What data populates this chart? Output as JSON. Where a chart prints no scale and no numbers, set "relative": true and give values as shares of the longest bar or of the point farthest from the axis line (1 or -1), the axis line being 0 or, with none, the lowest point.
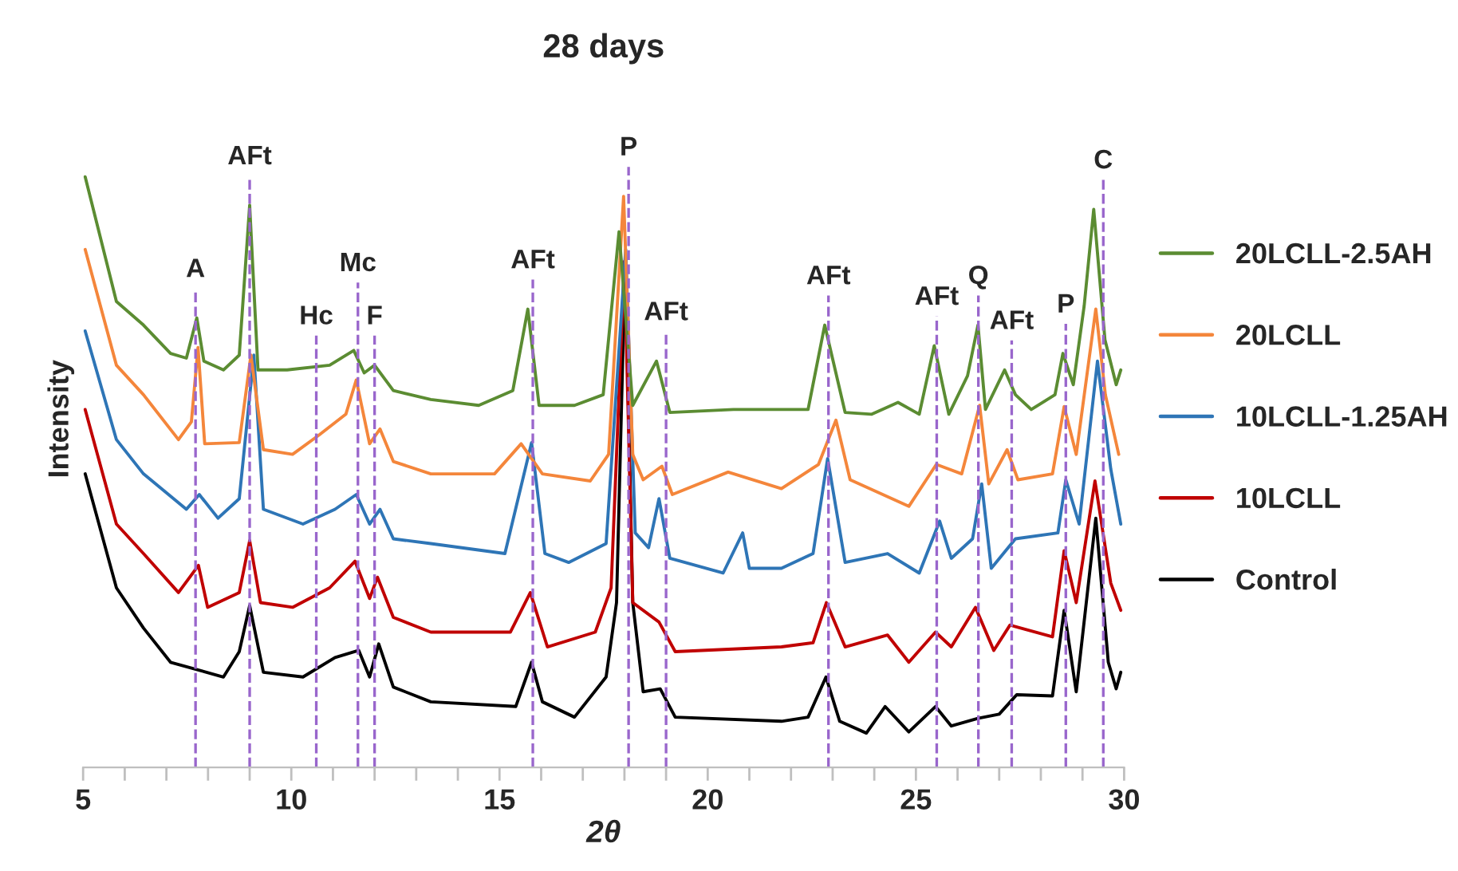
{
  "chart_data": {
    "type": "line",
    "title": "28 days",
    "xlabel": "2θ",
    "ylabel": "Intensity",
    "relative": true,
    "legend": "right",
    "xlim": [
      5,
      30
    ],
    "xticks": [
      5,
      {
        "value": 6,
        "label": null
      },
      {
        "value": 7,
        "label": null
      },
      {
        "value": 8,
        "label": null
      },
      {
        "value": 9,
        "label": null
      },
      10,
      {
        "value": 11,
        "label": null
      },
      {
        "value": 12,
        "label": null
      },
      {
        "value": 13,
        "label": null
      },
      {
        "value": 14,
        "label": null
      },
      15,
      {
        "value": 16,
        "label": null
      },
      {
        "value": 17,
        "label": null
      },
      {
        "value": 18,
        "label": null
      },
      {
        "value": 19,
        "label": null
      },
      20,
      {
        "value": 21,
        "label": null
      },
      {
        "value": 22,
        "label": null
      },
      {
        "value": 23,
        "label": null
      },
      {
        "value": 24,
        "label": null
      },
      25,
      {
        "value": 26,
        "label": null
      },
      {
        "value": 27,
        "label": null
      },
      {
        "value": 28,
        "label": null
      },
      {
        "value": 29,
        "label": null
      },
      30
    ],
    "series": [
      {
        "name": "Control",
        "color": "#000000",
        "x": [
          5.05,
          5.8,
          6.45,
          7.1,
          8.37,
          8.75,
          9.0,
          9.33,
          10.28,
          11.05,
          11.62,
          11.88,
          12.1,
          12.45,
          13.35,
          15.39,
          15.77,
          16.03,
          16.8,
          17.56,
          17.81,
          18.02,
          18.2,
          18.45,
          18.86,
          19.22,
          21.77,
          22.41,
          22.84,
          23.17,
          23.81,
          24.26,
          24.83,
          25.47,
          25.85,
          26.49,
          27.0,
          27.42,
          28.28,
          28.56,
          28.85,
          29.32,
          29.62,
          29.81,
          29.92
        ],
        "values": [
          0.497,
          0.304,
          0.236,
          0.178,
          0.153,
          0.196,
          0.274,
          0.161,
          0.153,
          0.186,
          0.198,
          0.153,
          0.209,
          0.136,
          0.111,
          0.103,
          0.178,
          0.111,
          0.085,
          0.153,
          0.279,
          0.862,
          0.279,
          0.128,
          0.133,
          0.085,
          0.078,
          0.085,
          0.153,
          0.078,
          0.058,
          0.103,
          0.06,
          0.103,
          0.07,
          0.083,
          0.09,
          0.123,
          0.121,
          0.266,
          0.128,
          0.422,
          0.178,
          0.133,
          0.161
        ]
      },
      {
        "name": "10LCLL",
        "color": "#c00000",
        "x": [
          5.05,
          5.8,
          6.45,
          7.29,
          7.77,
          7.99,
          8.75,
          9.0,
          9.26,
          10.03,
          10.92,
          11.53,
          11.88,
          12.07,
          12.45,
          13.35,
          15.26,
          15.74,
          16.15,
          17.3,
          17.68,
          18.0,
          18.2,
          18.83,
          19.22,
          21.77,
          22.53,
          22.85,
          23.3,
          24.32,
          24.83,
          25.47,
          25.85,
          26.43,
          26.87,
          27.26,
          28.28,
          28.56,
          28.85,
          29.3,
          29.68,
          29.92
        ],
        "values": [
          0.606,
          0.412,
          0.362,
          0.296,
          0.342,
          0.271,
          0.296,
          0.384,
          0.279,
          0.271,
          0.304,
          0.349,
          0.286,
          0.322,
          0.254,
          0.229,
          0.229,
          0.296,
          0.204,
          0.229,
          0.304,
          0.857,
          0.279,
          0.246,
          0.196,
          0.204,
          0.211,
          0.279,
          0.204,
          0.224,
          0.178,
          0.229,
          0.204,
          0.271,
          0.198,
          0.241,
          0.221,
          0.367,
          0.279,
          0.485,
          0.312,
          0.266
        ]
      },
      {
        "name": "10LCLL-1.25AH",
        "color": "#2e75b6",
        "x": [
          5.05,
          5.8,
          6.45,
          7.48,
          7.79,
          8.24,
          8.75,
          9.1,
          9.33,
          10.28,
          11.05,
          11.56,
          11.88,
          12.13,
          12.45,
          13.35,
          15.13,
          15.77,
          16.09,
          16.66,
          17.56,
          18.03,
          18.26,
          18.58,
          18.83,
          19.09,
          20.37,
          20.84,
          21.0,
          21.77,
          22.53,
          22.88,
          23.3,
          24.32,
          25.08,
          25.57,
          25.85,
          26.36,
          26.58,
          26.81,
          27.39,
          28.41,
          28.6,
          28.92,
          29.36,
          29.68,
          29.92
        ],
        "values": [
          0.739,
          0.555,
          0.497,
          0.437,
          0.462,
          0.422,
          0.455,
          0.698,
          0.437,
          0.412,
          0.437,
          0.462,
          0.412,
          0.437,
          0.387,
          0.379,
          0.362,
          0.55,
          0.362,
          0.347,
          0.379,
          0.877,
          0.397,
          0.372,
          0.455,
          0.354,
          0.329,
          0.397,
          0.337,
          0.337,
          0.362,
          0.523,
          0.347,
          0.362,
          0.329,
          0.417,
          0.354,
          0.387,
          0.48,
          0.337,
          0.387,
          0.397,
          0.487,
          0.412,
          0.688,
          0.505,
          0.412
        ]
      },
      {
        "name": "20LCLL",
        "color": "#f4863b",
        "x": [
          5.05,
          5.8,
          6.45,
          7.29,
          7.6,
          7.76,
          7.92,
          8.75,
          9.03,
          9.33,
          10.03,
          10.67,
          11.31,
          11.56,
          11.88,
          12.13,
          12.45,
          13.35,
          14.88,
          15.52,
          16.03,
          17.18,
          17.62,
          17.98,
          18.2,
          18.45,
          18.9,
          19.15,
          20.49,
          21.77,
          22.66,
          23.08,
          23.42,
          24.83,
          25.49,
          26.1,
          26.53,
          26.75,
          27.19,
          27.45,
          28.28,
          28.56,
          28.85,
          29.32,
          29.55,
          29.87
        ],
        "values": [
          0.877,
          0.681,
          0.631,
          0.555,
          0.585,
          0.711,
          0.548,
          0.55,
          0.698,
          0.538,
          0.53,
          0.563,
          0.598,
          0.656,
          0.548,
          0.573,
          0.518,
          0.497,
          0.497,
          0.548,
          0.497,
          0.485,
          0.53,
          0.967,
          0.53,
          0.487,
          0.51,
          0.462,
          0.5,
          0.472,
          0.513,
          0.588,
          0.487,
          0.442,
          0.513,
          0.497,
          0.613,
          0.48,
          0.538,
          0.487,
          0.497,
          0.611,
          0.53,
          0.776,
          0.631,
          0.53
        ]
      },
      {
        "name": "20LCLL-2.5AH",
        "color": "#5b8c32",
        "x": [
          5.05,
          5.8,
          6.45,
          7.1,
          7.48,
          7.73,
          7.9,
          8.37,
          8.75,
          9.0,
          9.2,
          9.9,
          10.92,
          11.5,
          11.75,
          12.0,
          12.45,
          13.35,
          14.5,
          15.32,
          15.68,
          15.95,
          16.8,
          17.49,
          17.87,
          18.2,
          18.77,
          19.09,
          20.62,
          21.77,
          22.41,
          22.81,
          23.3,
          23.94,
          24.57,
          25.08,
          25.44,
          25.79,
          26.24,
          26.49,
          26.67,
          27.13,
          27.39,
          27.77,
          28.34,
          28.53,
          28.78,
          29.04,
          29.27,
          29.54,
          29.81,
          29.92
        ],
        "values": [
          1.0,
          0.789,
          0.749,
          0.701,
          0.693,
          0.761,
          0.688,
          0.673,
          0.698,
          0.952,
          0.673,
          0.673,
          0.681,
          0.706,
          0.668,
          0.681,
          0.638,
          0.623,
          0.613,
          0.638,
          0.776,
          0.613,
          0.613,
          0.631,
          0.907,
          0.613,
          0.688,
          0.601,
          0.606,
          0.606,
          0.606,
          0.749,
          0.601,
          0.598,
          0.618,
          0.598,
          0.714,
          0.598,
          0.663,
          0.749,
          0.606,
          0.673,
          0.631,
          0.606,
          0.631,
          0.701,
          0.648,
          0.781,
          0.945,
          0.724,
          0.648,
          0.673
        ]
      }
    ],
    "ref_lines": [
      {
        "axis": "x",
        "value": 7.7,
        "label": "A",
        "color": "#9966cc",
        "line_style": "dashed"
      },
      {
        "axis": "x",
        "value": 9.0,
        "label": "AFt",
        "color": "#9966cc",
        "line_style": "dashed"
      },
      {
        "axis": "x",
        "value": 10.6,
        "label": "Hc",
        "color": "#9966cc",
        "line_style": "dashed"
      },
      {
        "axis": "x",
        "value": 11.6,
        "label": "Mc",
        "color": "#9966cc",
        "line_style": "dashed"
      },
      {
        "axis": "x",
        "value": 12.0,
        "label": "F",
        "color": "#9966cc",
        "line_style": "dashed"
      },
      {
        "axis": "x",
        "value": 15.8,
        "label": "AFt",
        "color": "#9966cc",
        "line_style": "dashed"
      },
      {
        "axis": "x",
        "value": 18.1,
        "label": "P",
        "color": "#9966cc",
        "line_style": "dashed"
      },
      {
        "axis": "x",
        "value": 19.0,
        "label": "AFt",
        "color": "#9966cc",
        "line_style": "dashed"
      },
      {
        "axis": "x",
        "value": 22.9,
        "label": "AFt",
        "color": "#9966cc",
        "line_style": "dashed"
      },
      {
        "axis": "x",
        "value": 25.5,
        "label": "AFt",
        "color": "#9966cc",
        "line_style": "dashed"
      },
      {
        "axis": "x",
        "value": 26.5,
        "label": "Q",
        "color": "#9966cc",
        "line_style": "dashed"
      },
      {
        "axis": "x",
        "value": 27.3,
        "label": "AFt",
        "color": "#9966cc",
        "line_style": "dashed"
      },
      {
        "axis": "x",
        "value": 28.6,
        "label": "P",
        "color": "#9966cc",
        "line_style": "dashed"
      },
      {
        "axis": "x",
        "value": 29.5,
        "label": "C",
        "color": "#9966cc",
        "line_style": "dashed"
      }
    ]
  }
}
